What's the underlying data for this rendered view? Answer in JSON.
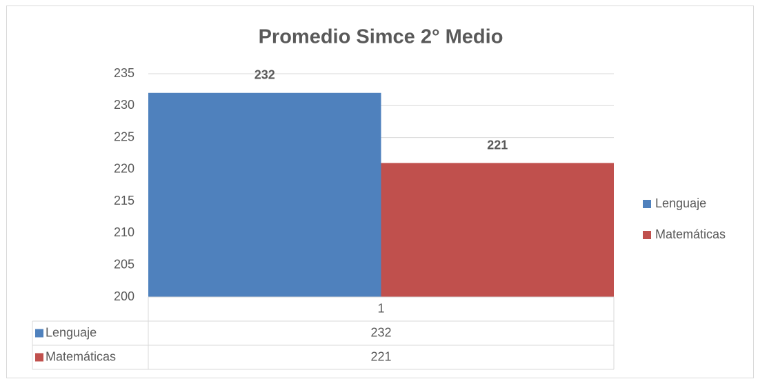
{
  "chart_data": {
    "type": "bar",
    "title": "Promedio Simce 2° Medio",
    "categories": [
      "1"
    ],
    "series": [
      {
        "name": "Lenguaje",
        "color": "#4f81bd",
        "values": [
          232
        ]
      },
      {
        "name": "Matemáticas",
        "color": "#c0504d",
        "values": [
          221
        ]
      }
    ],
    "ylim": [
      200,
      235
    ],
    "yticks": [
      200,
      205,
      210,
      215,
      220,
      225,
      230,
      235
    ],
    "grid": true,
    "legend": "right",
    "data_table": true,
    "data_labels": true
  }
}
